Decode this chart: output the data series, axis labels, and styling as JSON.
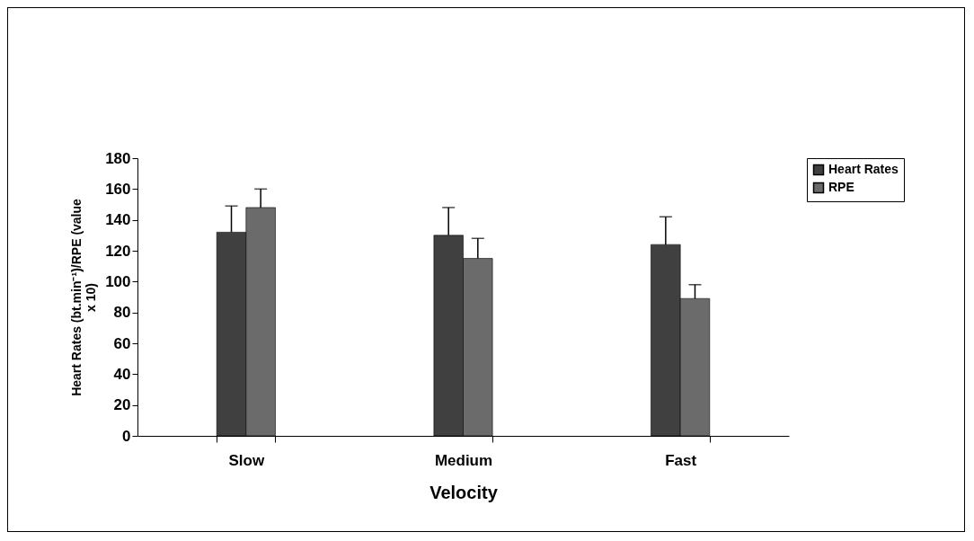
{
  "chart_data": {
    "type": "bar",
    "xlabel": "Velocity",
    "ylabel": "Heart Rates (bt.min⁻¹)/RPE (value x 10)",
    "categories": [
      "Slow",
      "Medium",
      "Fast"
    ],
    "series": [
      {
        "name": "Heart Rates",
        "color": "#404040",
        "values": [
          132,
          130,
          124
        ],
        "errors": [
          [
            132,
            149
          ],
          [
            130,
            148
          ],
          [
            124,
            142
          ]
        ]
      },
      {
        "name": "RPE",
        "color": "#6b6b6b",
        "values": [
          148,
          115,
          89
        ],
        "errors": [
          [
            148,
            160
          ],
          [
            115,
            128
          ],
          [
            89,
            98
          ]
        ]
      }
    ],
    "ylim": [
      0,
      180
    ],
    "yticks": [
      0,
      20,
      40,
      60,
      80,
      100,
      120,
      140,
      160,
      180
    ],
    "grid": false,
    "legend": "top right"
  }
}
